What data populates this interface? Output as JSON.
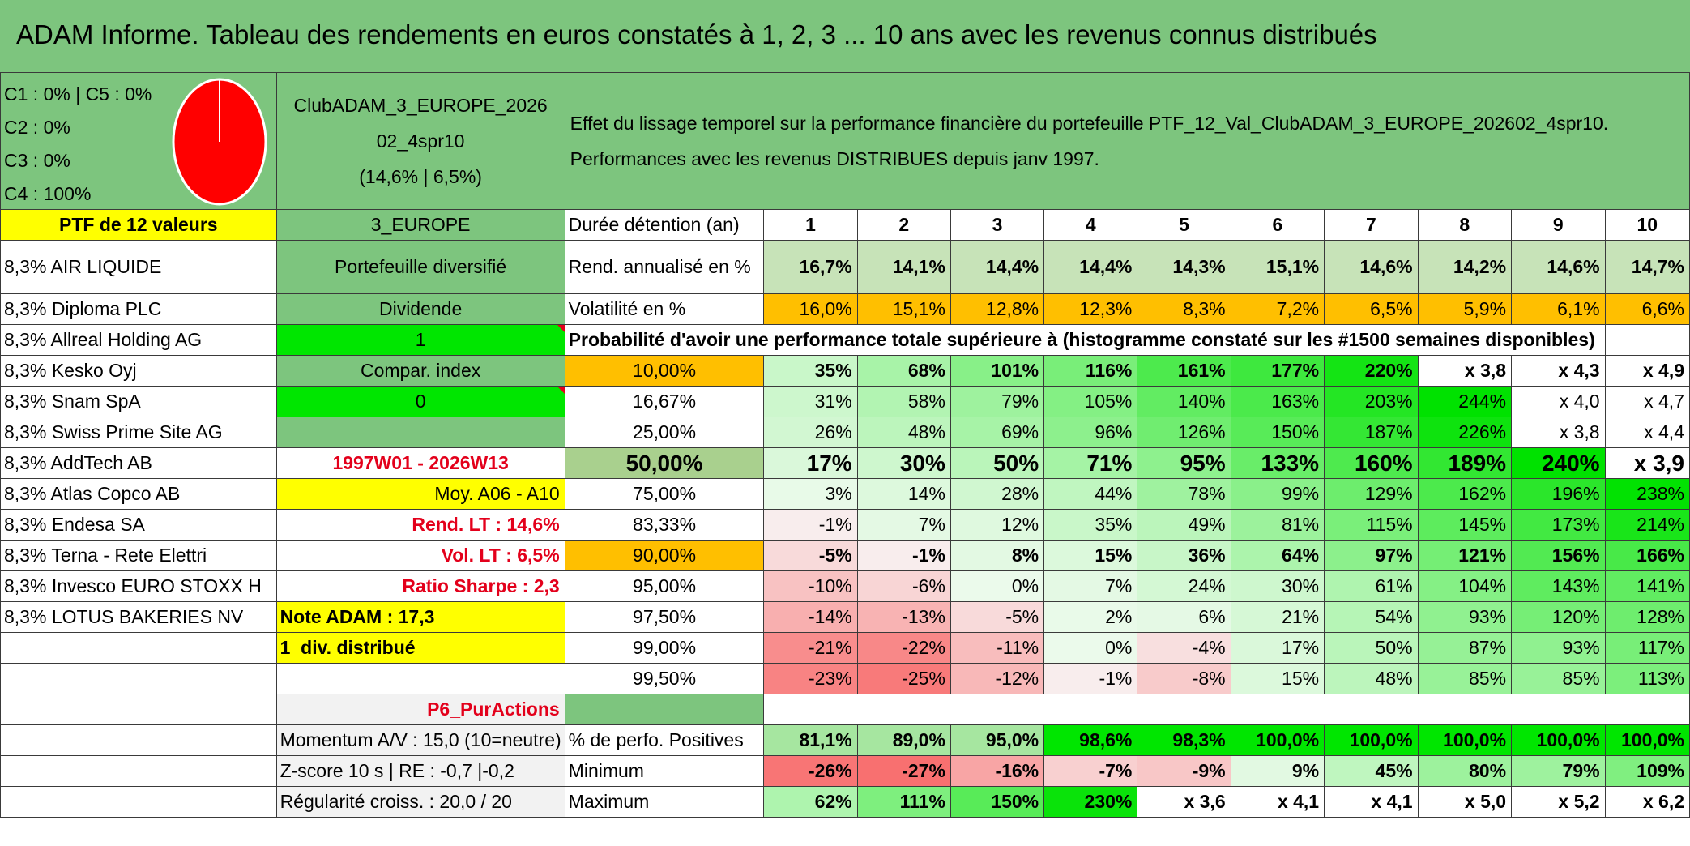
{
  "title": "ADAM Informe. Tableau des rendements en euros constatés à 1, 2, 3 ... 10 ans avec les revenus connus distribués",
  "allocation": [
    "C1 : 0% | C5 : 0%",
    "C2 : 0%",
    "C3 : 0%",
    "C4 : 100%"
  ],
  "club": {
    "line1": "ClubADAM_3_EUROPE_2026",
    "line2": "02_4spr10",
    "line3": "(14,6% | 6,5%)"
  },
  "effect": {
    "line1": "Effet du lissage temporel sur la performance financière du portefeuille PTF_12_Val_ClubADAM_3_EUROPE_202602_4spr10.",
    "line2": "Performances avec les revenus DISTRIBUES depuis janv 1997."
  },
  "ptf_label": "PTF de 12 valeurs",
  "zone": "3_EUROPE",
  "duree_label": "Durée détention (an)",
  "years": [
    "1",
    "2",
    "3",
    "4",
    "5",
    "6",
    "7",
    "8",
    "9",
    "10"
  ],
  "holdings": [
    "8,3% AIR LIQUIDE",
    "8,3% Diploma PLC",
    "8,3% Allreal Holding AG",
    "8,3% Kesko Oyj",
    "8,3% Snam SpA",
    "8,3% Swiss Prime Site AG",
    "8,3% AddTech AB",
    "8,3% Atlas Copco AB",
    "8,3% Endesa SA",
    "8,3% Terna - Rete Elettri",
    "8,3% Invesco EURO STOXX H",
    "8,3% LOTUS BAKERIES NV"
  ],
  "info": {
    "portefeuille": "Portefeuille diversifié",
    "dividende": "Dividende",
    "dividende_val": "1",
    "compar": "Compar. index",
    "compar_val": "0",
    "period": "1997W01 - 2026W13",
    "moy": "Moy. A06 - A10",
    "rend_lt": "Rend. LT : 14,6%",
    "vol_lt": "Vol. LT : 6,5%",
    "sharpe": "Ratio Sharpe : 2,3",
    "note": "Note ADAM : 17,3",
    "div_distrib": "1_div. distribué",
    "p6": "P6_PurActions",
    "momentum": "Momentum A/V : 15,0 (10=neutre)",
    "zscore": "Z-score 10 s | RE : -0,7 |-0,2",
    "regularite": "Régularité croiss. : 20,0 / 20"
  },
  "rend": {
    "label": "Rend. annualisé en %",
    "values": [
      "16,7%",
      "14,1%",
      "14,4%",
      "14,4%",
      "14,3%",
      "15,1%",
      "14,6%",
      "14,2%",
      "14,6%",
      "14,7%"
    ]
  },
  "vol": {
    "label": "Volatilité en %",
    "values": [
      "16,0%",
      "15,1%",
      "12,8%",
      "12,3%",
      "8,3%",
      "7,2%",
      "6,5%",
      "5,9%",
      "6,1%",
      "6,6%"
    ]
  },
  "prob_title": "Probabilité d'avoir une performance totale supérieure à (histogramme constaté sur les #1500 semaines disponibles)",
  "prob_rows": [
    {
      "label": "10,00%",
      "values": [
        "35%",
        "68%",
        "101%",
        "116%",
        "161%",
        "177%",
        "220%",
        "x 3,8",
        "x 4,3",
        "x 4,9"
      ]
    },
    {
      "label": "16,67%",
      "values": [
        "31%",
        "58%",
        "79%",
        "105%",
        "140%",
        "163%",
        "203%",
        "244%",
        "x 4,0",
        "x 4,7"
      ]
    },
    {
      "label": "25,00%",
      "values": [
        "26%",
        "48%",
        "69%",
        "96%",
        "126%",
        "150%",
        "187%",
        "226%",
        "x 3,8",
        "x 4,4"
      ]
    },
    {
      "label": "50,00%",
      "values": [
        "17%",
        "30%",
        "50%",
        "71%",
        "95%",
        "133%",
        "160%",
        "189%",
        "240%",
        "x 3,9"
      ]
    },
    {
      "label": "75,00%",
      "values": [
        "3%",
        "14%",
        "28%",
        "44%",
        "78%",
        "99%",
        "129%",
        "162%",
        "196%",
        "238%"
      ]
    },
    {
      "label": "83,33%",
      "values": [
        "-1%",
        "7%",
        "12%",
        "35%",
        "49%",
        "81%",
        "115%",
        "145%",
        "173%",
        "214%"
      ]
    },
    {
      "label": "90,00%",
      "values": [
        "-5%",
        "-1%",
        "8%",
        "15%",
        "36%",
        "64%",
        "97%",
        "121%",
        "156%",
        "166%"
      ]
    },
    {
      "label": "95,00%",
      "values": [
        "-10%",
        "-6%",
        "0%",
        "7%",
        "24%",
        "30%",
        "61%",
        "104%",
        "143%",
        "141%"
      ]
    },
    {
      "label": "97,50%",
      "values": [
        "-14%",
        "-13%",
        "-5%",
        "2%",
        "6%",
        "21%",
        "54%",
        "93%",
        "120%",
        "128%"
      ]
    },
    {
      "label": "99,00%",
      "values": [
        "-21%",
        "-22%",
        "-11%",
        "0%",
        "-4%",
        "17%",
        "50%",
        "87%",
        "93%",
        "117%"
      ]
    },
    {
      "label": "99,50%",
      "values": [
        "-23%",
        "-25%",
        "-12%",
        "-1%",
        "-8%",
        "15%",
        "48%",
        "85%",
        "85%",
        "113%"
      ]
    }
  ],
  "pos": {
    "label": "% de perfo. Positives",
    "values": [
      "81,1%",
      "89,0%",
      "95,0%",
      "98,6%",
      "98,3%",
      "100,0%",
      "100,0%",
      "100,0%",
      "100,0%",
      "100,0%"
    ]
  },
  "min": {
    "label": "Minimum",
    "values": [
      "-26%",
      "-27%",
      "-16%",
      "-7%",
      "-9%",
      "9%",
      "45%",
      "80%",
      "79%",
      "109%"
    ]
  },
  "max": {
    "label": "Maximum",
    "values": [
      "62%",
      "111%",
      "150%",
      "230%",
      "x 3,6",
      "x 4,1",
      "x 4,1",
      "x 5,0",
      "x 5,2",
      "x 6,2"
    ]
  },
  "colors": {
    "header_green": "#7dc57e",
    "yellow": "#ffff00",
    "orange": "#ffbf00",
    "bright_green": "#00e600",
    "red_text": "#e3001b",
    "pie": "#ff0000"
  }
}
